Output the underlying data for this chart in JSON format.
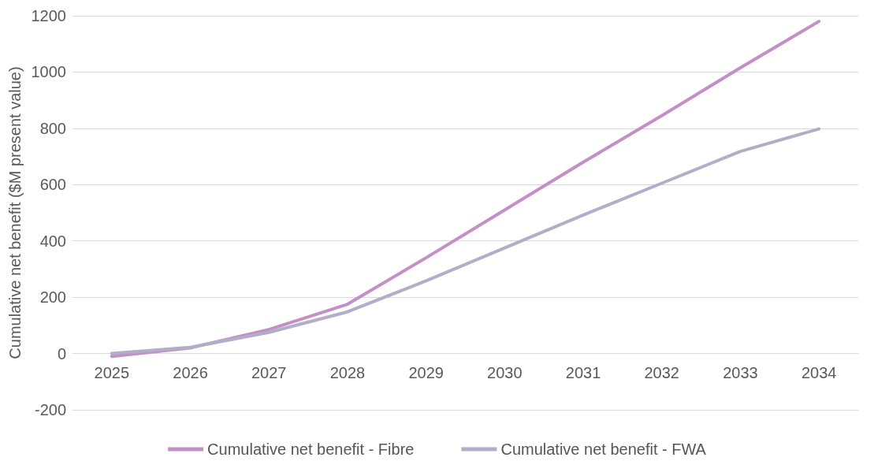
{
  "chart_data": {
    "type": "line",
    "ylabel": "Cumulative net benefit ($M present value)",
    "categories": [
      "2025",
      "2026",
      "2027",
      "2028",
      "2029",
      "2030",
      "2031",
      "2032",
      "2033",
      "2034"
    ],
    "series": [
      {
        "name": "Cumulative net benefit - Fibre",
        "color": "#c48fc6",
        "values": [
          -10,
          20,
          85,
          175,
          340,
          510,
          680,
          845,
          1015,
          1180
        ]
      },
      {
        "name": "Cumulative net benefit - FWA",
        "color": "#b3aec8",
        "values": [
          0,
          22,
          75,
          148,
          258,
          375,
          492,
          605,
          718,
          798
        ]
      }
    ],
    "ylim": [
      -200,
      1200
    ],
    "yticks": [
      -200,
      0,
      200,
      400,
      600,
      800,
      1000,
      1200
    ],
    "grid": "y",
    "legend": "bottom",
    "marker": "none",
    "line_style": "solid"
  }
}
